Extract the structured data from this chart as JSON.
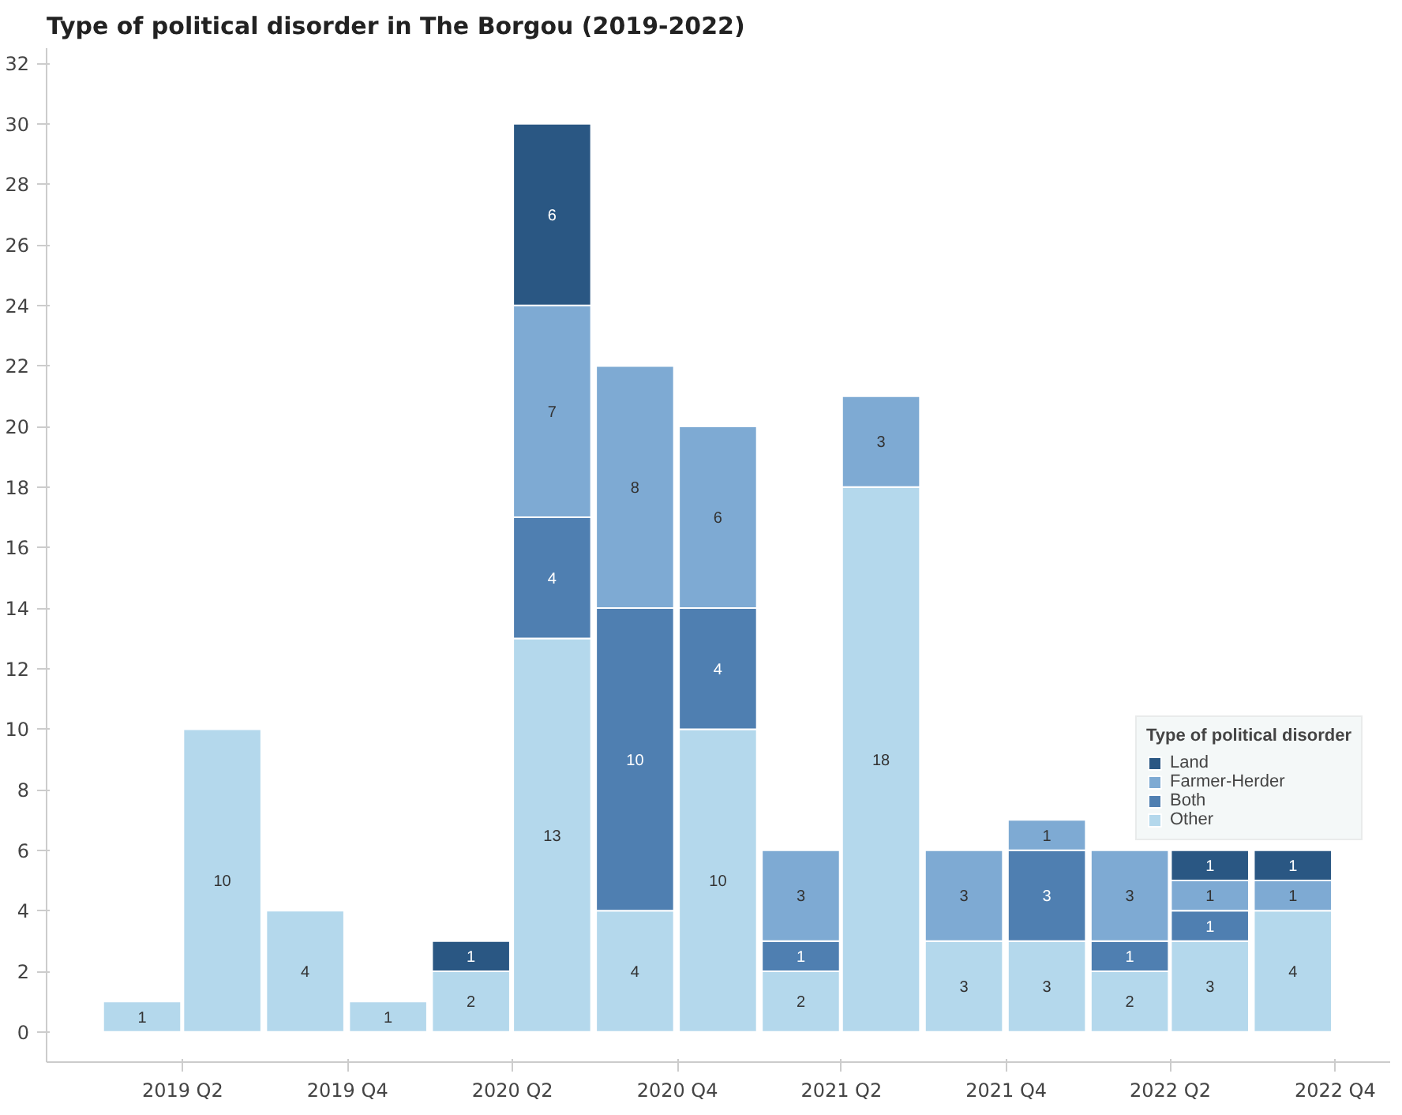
{
  "chart_data": {
    "type": "bar",
    "title": "Type of political disorder in The Borgou (2019-2022)",
    "legend_title": "Type of political disorder",
    "x": [
      "2019-02-15",
      "2019-05-15",
      "2019-08-15",
      "2019-11-15",
      "2020-02-15",
      "2020-05-15",
      "2020-08-15",
      "2020-11-15",
      "2021-02-15",
      "2021-05-15",
      "2021-08-15",
      "2021-11-15",
      "2022-02-15",
      "2022-05-15",
      "2022-08-15"
    ],
    "stacked": true,
    "data_labels": true,
    "legend": "right",
    "grid": false,
    "xlim": [
      "2018-11-01",
      "2022-12-01"
    ],
    "xticks": [
      {
        "value": "2019-04-01",
        "label": "2019 Q2"
      },
      {
        "value": "2019-10-01",
        "label": "2019 Q4"
      },
      {
        "value": "2020-04-01",
        "label": "2020 Q2"
      },
      {
        "value": "2020-10-01",
        "label": "2020 Q4"
      },
      {
        "value": "2021-04-01",
        "label": "2021 Q2"
      },
      {
        "value": "2021-10-01",
        "label": "2021 Q4"
      },
      {
        "value": "2022-04-01",
        "label": "2022 Q2"
      },
      {
        "value": "2022-10-01",
        "label": "2022 Q4"
      }
    ],
    "ylim": [
      -1,
      32.5
    ],
    "yticks": [
      0,
      2,
      4,
      6,
      8,
      10,
      12,
      14,
      16,
      18,
      20,
      22,
      24,
      26,
      28,
      30,
      32
    ],
    "series": [
      {
        "name": "Other",
        "color": "#b4d8ec",
        "values": [
          1,
          10,
          4,
          1,
          2,
          13,
          4,
          10,
          2,
          18,
          3,
          3,
          2,
          3,
          4
        ]
      },
      {
        "name": "Both",
        "color": "#4f7fb1",
        "values": [
          null,
          null,
          null,
          null,
          null,
          4,
          10,
          4,
          1,
          null,
          null,
          3,
          1,
          1,
          null
        ]
      },
      {
        "name": "Farmer-Herder",
        "color": "#7eaad3",
        "values": [
          null,
          null,
          null,
          null,
          null,
          7,
          8,
          6,
          3,
          3,
          3,
          1,
          3,
          1,
          1
        ]
      },
      {
        "name": "Land",
        "color": "#2a5783",
        "values": [
          null,
          null,
          null,
          null,
          1,
          6,
          null,
          null,
          null,
          null,
          null,
          null,
          null,
          1,
          1
        ]
      }
    ]
  }
}
